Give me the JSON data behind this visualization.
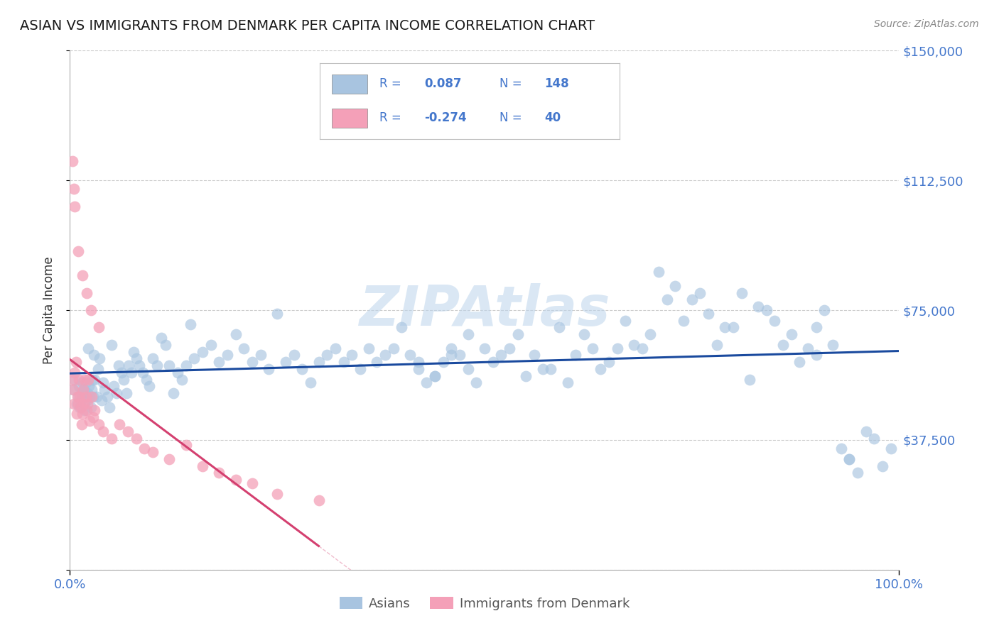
{
  "title": "ASIAN VS IMMIGRANTS FROM DENMARK PER CAPITA INCOME CORRELATION CHART",
  "source_text": "Source: ZipAtlas.com",
  "ylabel": "Per Capita Income",
  "xlim": [
    0.0,
    100.0
  ],
  "ylim": [
    0,
    150000
  ],
  "yticks": [
    0,
    37500,
    75000,
    112500,
    150000
  ],
  "xtick_labels": [
    "0.0%",
    "100.0%"
  ],
  "r_asian": 0.087,
  "n_asian": 148,
  "r_denmark": -0.274,
  "n_denmark": 40,
  "legend_label_asian": "Asians",
  "legend_label_denmark": "Immigrants from Denmark",
  "watermark": "ZIPAtlas",
  "blue_color": "#a8c4e0",
  "blue_line_color": "#1a4a9e",
  "pink_color": "#f4a0b8",
  "pink_line_color": "#d44070",
  "title_color": "#1a1a1a",
  "axis_color": "#4477cc",
  "grid_color": "#cccccc",
  "background_color": "#ffffff",
  "asian_x": [
    0.4,
    0.6,
    0.8,
    1.0,
    1.1,
    1.2,
    1.3,
    1.4,
    1.5,
    1.6,
    1.7,
    1.8,
    1.9,
    2.0,
    2.1,
    2.2,
    2.3,
    2.4,
    2.5,
    2.6,
    2.7,
    2.8,
    2.9,
    3.0,
    3.2,
    3.4,
    3.6,
    3.8,
    4.0,
    4.2,
    4.5,
    4.8,
    5.0,
    5.3,
    5.6,
    5.9,
    6.2,
    6.5,
    6.8,
    7.1,
    7.4,
    7.7,
    8.0,
    8.4,
    8.8,
    9.2,
    9.6,
    10.0,
    10.5,
    11.0,
    11.5,
    12.0,
    12.5,
    13.0,
    13.5,
    14.0,
    14.5,
    15.0,
    16.0,
    17.0,
    18.0,
    19.0,
    20.0,
    21.0,
    22.0,
    23.0,
    24.0,
    25.0,
    26.0,
    27.0,
    28.0,
    29.0,
    30.0,
    31.0,
    32.0,
    33.0,
    34.0,
    35.0,
    36.0,
    37.0,
    38.0,
    39.0,
    40.0,
    41.0,
    42.0,
    43.0,
    44.0,
    45.0,
    46.0,
    47.0,
    48.0,
    49.0,
    50.0,
    51.0,
    52.0,
    53.0,
    55.0,
    57.0,
    59.0,
    61.0,
    63.0,
    65.0,
    67.0,
    69.0,
    71.0,
    73.0,
    75.0,
    77.0,
    79.0,
    81.0,
    83.0,
    85.0,
    87.0,
    89.0,
    90.0,
    91.0,
    92.0,
    93.0,
    94.0,
    95.0,
    96.0,
    97.0,
    98.0,
    99.0,
    62.0,
    68.0,
    74.0,
    76.0,
    80.0,
    84.0,
    86.0,
    88.0,
    90.0,
    72.0,
    64.0,
    66.0,
    70.0,
    78.0,
    82.0,
    94.0,
    56.0,
    54.0,
    58.0,
    60.0,
    48.0,
    46.0,
    44.0,
    42.0
  ],
  "asian_y": [
    52000,
    55000,
    48000,
    50000,
    53000,
    47000,
    49000,
    51000,
    54000,
    50000,
    52000,
    46000,
    54000,
    49000,
    51000,
    64000,
    53000,
    50000,
    47000,
    52000,
    55000,
    50000,
    62000,
    55000,
    50000,
    58000,
    61000,
    49000,
    54000,
    52000,
    50000,
    47000,
    65000,
    53000,
    51000,
    59000,
    57000,
    55000,
    51000,
    59000,
    57000,
    63000,
    61000,
    59000,
    57000,
    55000,
    53000,
    61000,
    59000,
    67000,
    65000,
    59000,
    51000,
    57000,
    55000,
    59000,
    71000,
    61000,
    63000,
    65000,
    60000,
    62000,
    68000,
    64000,
    60000,
    62000,
    58000,
    74000,
    60000,
    62000,
    58000,
    54000,
    60000,
    62000,
    64000,
    60000,
    62000,
    58000,
    64000,
    60000,
    62000,
    64000,
    70000,
    62000,
    58000,
    54000,
    56000,
    60000,
    64000,
    62000,
    58000,
    54000,
    64000,
    60000,
    62000,
    64000,
    56000,
    58000,
    70000,
    62000,
    64000,
    60000,
    72000,
    64000,
    86000,
    82000,
    78000,
    74000,
    70000,
    80000,
    76000,
    72000,
    68000,
    64000,
    70000,
    75000,
    65000,
    35000,
    32000,
    28000,
    40000,
    38000,
    30000,
    35000,
    68000,
    65000,
    72000,
    80000,
    70000,
    75000,
    65000,
    60000,
    62000,
    78000,
    58000,
    64000,
    68000,
    65000,
    55000,
    32000,
    62000,
    68000,
    58000,
    54000,
    68000,
    62000,
    56000,
    60000
  ],
  "denmark_x": [
    0.3,
    0.4,
    0.5,
    0.6,
    0.7,
    0.8,
    0.9,
    1.0,
    1.1,
    1.2,
    1.3,
    1.4,
    1.5,
    1.6,
    1.7,
    1.8,
    1.9,
    2.0,
    2.1,
    2.2,
    2.4,
    2.6,
    2.8,
    3.0,
    3.5,
    4.0,
    5.0,
    6.0,
    7.0,
    8.0,
    9.0,
    10.0,
    12.0,
    14.0,
    16.0,
    18.0,
    20.0,
    22.0,
    25.0,
    30.0
  ],
  "denmark_y": [
    55000,
    52000,
    48000,
    57000,
    60000,
    45000,
    50000,
    48000,
    55000,
    50000,
    47000,
    42000,
    45000,
    52000,
    48000,
    55000,
    50000,
    46000,
    48000,
    55000,
    43000,
    50000,
    44000,
    46000,
    42000,
    40000,
    38000,
    42000,
    40000,
    38000,
    35000,
    34000,
    32000,
    36000,
    30000,
    28000,
    26000,
    25000,
    22000,
    20000
  ],
  "denmark_outlier_x": [
    0.3,
    0.5,
    0.6,
    1.0,
    1.5,
    2.0,
    2.5,
    3.5
  ],
  "denmark_outlier_y": [
    118000,
    110000,
    105000,
    92000,
    85000,
    80000,
    75000,
    70000
  ]
}
